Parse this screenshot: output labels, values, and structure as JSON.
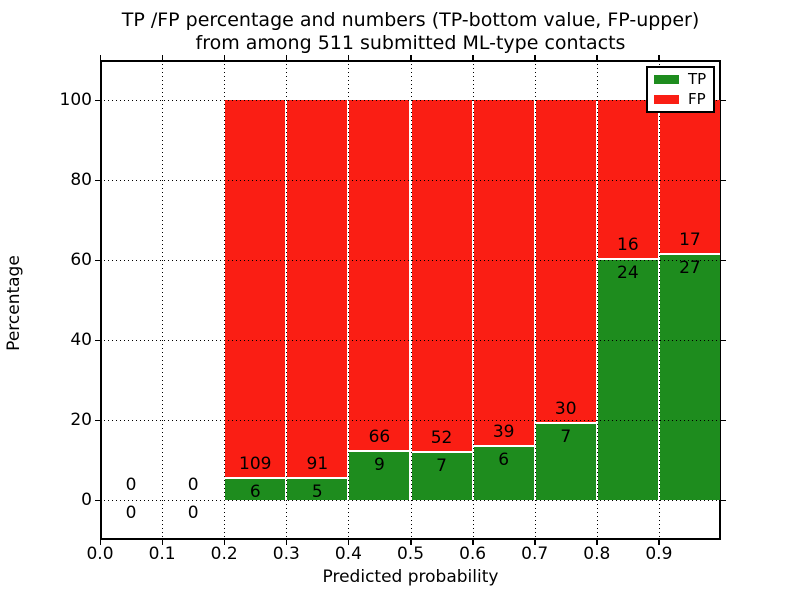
{
  "title": {
    "line1": "TP /FP percentage and numbers (TP-bottom value, FP-upper)",
    "line2": "from among 511 submitted ML-type contacts"
  },
  "axes": {
    "xlabel": "Predicted probability",
    "ylabel": "Percentage"
  },
  "legend": {
    "items": [
      {
        "label": "TP",
        "color": "#1e8c1e"
      },
      {
        "label": "FP",
        "color": "#fa1e14"
      }
    ]
  },
  "colors": {
    "tp_green": "#1e8c1e",
    "fp_red": "#fa1e14",
    "bar_edge": "#ffffff",
    "grid": "#000000"
  },
  "chart_data": {
    "type": "bar",
    "stacked": true,
    "normalized_to_percent": true,
    "title": "TP /FP percentage and numbers (TP-bottom value, FP-upper) from among 511 submitted ML-type contacts",
    "xlabel": "Predicted probability",
    "ylabel": "Percentage",
    "xlim": [
      0.0,
      1.0
    ],
    "ylim": [
      -10,
      110
    ],
    "xticks": [
      0.0,
      0.1,
      0.2,
      0.3,
      0.4,
      0.5,
      0.6,
      0.7,
      0.8,
      0.9
    ],
    "xtick_labels": [
      "0.0",
      "0.1",
      "0.2",
      "0.3",
      "0.4",
      "0.5",
      "0.6",
      "0.7",
      "0.8",
      "0.9"
    ],
    "yticks": [
      0,
      20,
      40,
      60,
      80,
      100
    ],
    "ytick_labels": [
      "0",
      "20",
      "40",
      "60",
      "80",
      "100"
    ],
    "grid": true,
    "grid_style": "dotted",
    "legend_position": "upper right",
    "total_contacts": 511,
    "series_names": [
      "TP",
      "FP"
    ],
    "bins": [
      {
        "range": [
          0.0,
          0.1
        ],
        "tp_count": 0,
        "fp_count": 0,
        "tp_pct": 0,
        "fp_pct": 0
      },
      {
        "range": [
          0.1,
          0.2
        ],
        "tp_count": 0,
        "fp_count": 0,
        "tp_pct": 0,
        "fp_pct": 0
      },
      {
        "range": [
          0.2,
          0.3
        ],
        "tp_count": 6,
        "fp_count": 109,
        "tp_pct": 5.217,
        "fp_pct": 94.783
      },
      {
        "range": [
          0.3,
          0.4
        ],
        "tp_count": 5,
        "fp_count": 91,
        "tp_pct": 5.208,
        "fp_pct": 94.792
      },
      {
        "range": [
          0.4,
          0.5
        ],
        "tp_count": 9,
        "fp_count": 66,
        "tp_pct": 12.0,
        "fp_pct": 88.0
      },
      {
        "range": [
          0.5,
          0.6
        ],
        "tp_count": 7,
        "fp_count": 52,
        "tp_pct": 11.864,
        "fp_pct": 88.136
      },
      {
        "range": [
          0.6,
          0.7
        ],
        "tp_count": 6,
        "fp_count": 39,
        "tp_pct": 13.333,
        "fp_pct": 86.667
      },
      {
        "range": [
          0.7,
          0.8
        ],
        "tp_count": 7,
        "fp_count": 30,
        "tp_pct": 18.919,
        "fp_pct": 81.081
      },
      {
        "range": [
          0.8,
          0.9
        ],
        "tp_count": 24,
        "fp_count": 16,
        "tp_pct": 60.0,
        "fp_pct": 40.0
      },
      {
        "range": [
          0.9,
          1.0
        ],
        "tp_count": 27,
        "fp_count": 17,
        "tp_pct": 61.364,
        "fp_pct": 38.636
      }
    ]
  }
}
